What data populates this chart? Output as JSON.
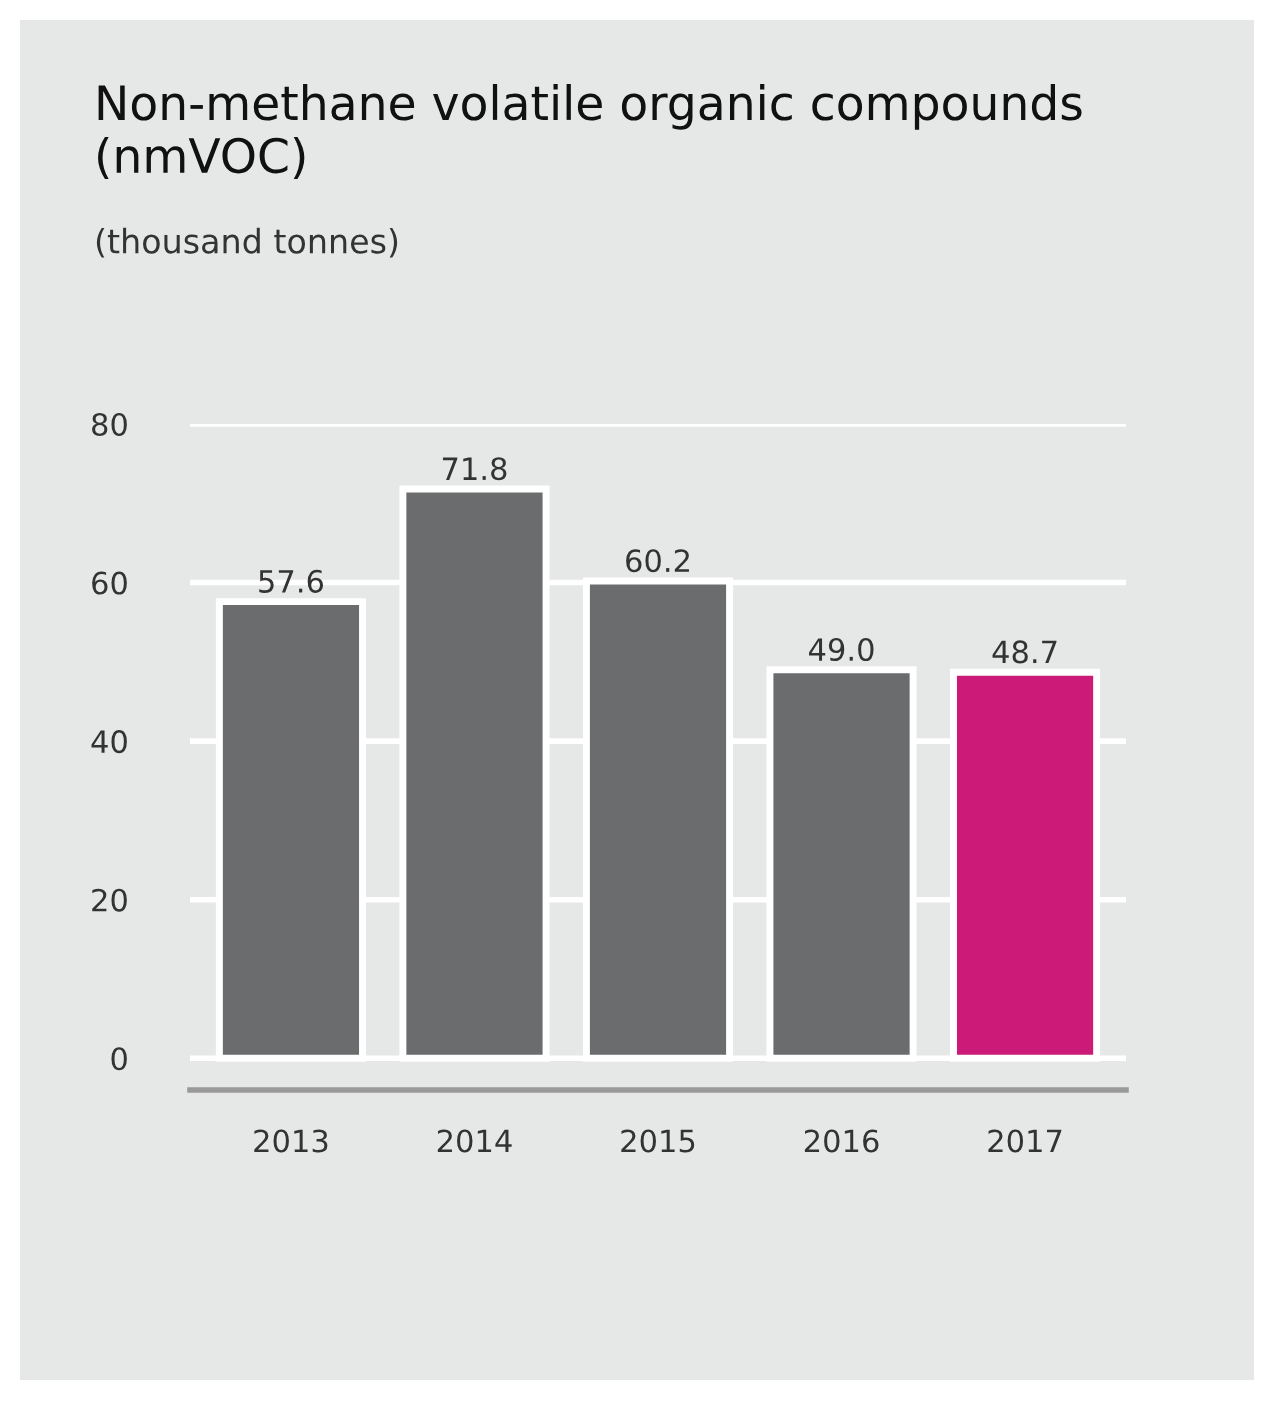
{
  "chart_data": {
    "type": "bar",
    "title": "Non-methane volatile organic compounds\n(nmVOC)",
    "subtitle": "(thousand tonnes)",
    "categories": [
      "2013",
      "2014",
      "2015",
      "2016",
      "2017"
    ],
    "values": [
      57.6,
      71.8,
      60.2,
      49.0,
      48.7
    ],
    "colors": [
      "#6a6c6d",
      "#6a6c6d",
      "#6a6c6d",
      "#6a6c6d",
      "#cc1a78"
    ],
    "value_labels": [
      "57.6",
      "71.8",
      "60.2",
      "49.0",
      "48.7"
    ],
    "ylim": [
      -4,
      80
    ],
    "yticks": [
      0,
      20,
      40,
      60,
      80
    ],
    "grid": "y"
  }
}
